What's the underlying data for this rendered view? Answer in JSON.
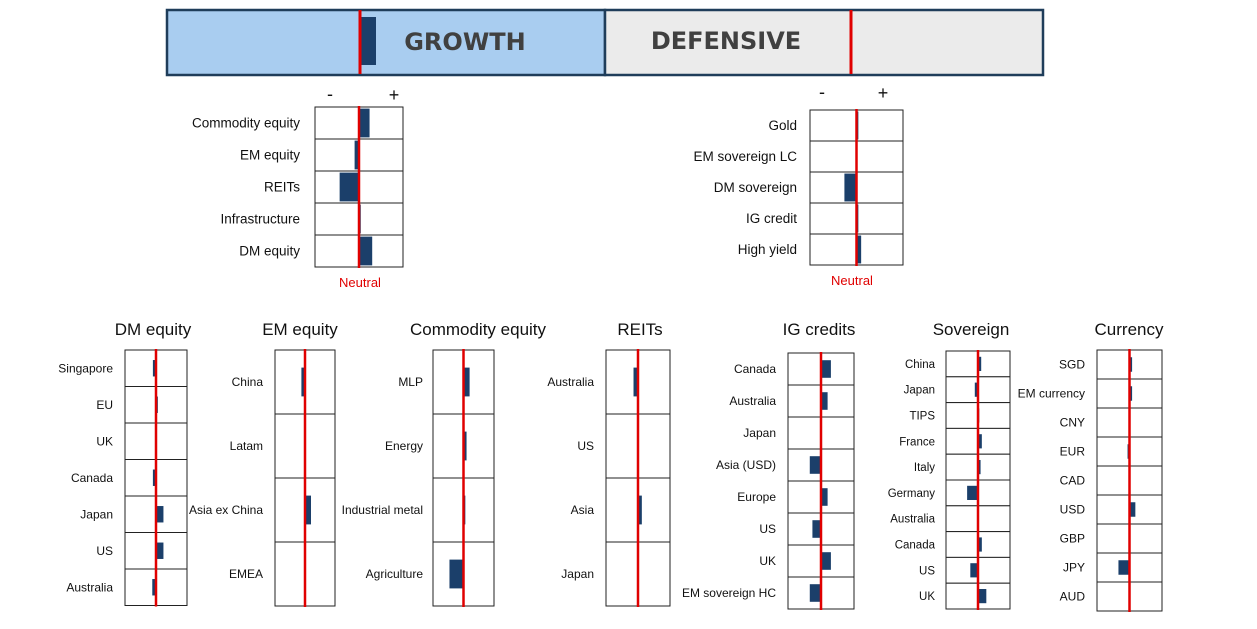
{
  "colors": {
    "growth_fill": "#a9cdf0",
    "defensive_fill": "#ebebeb",
    "banner_border": "#1f3d5a",
    "bar": "#1b3f6a",
    "neutral_line": "#e00000",
    "cell_border": "#222222"
  },
  "banner": {
    "growth_label": "GROWTH",
    "defensive_label": "DEFENSIVE",
    "growth_value": 0.8,
    "defensive_value": 0
  },
  "scale": {
    "minus": "-",
    "plus": "+",
    "neutral_label": "Neutral"
  },
  "chart_data": [
    {
      "type": "bar",
      "id": "growth",
      "categories": [
        "Commodity equity",
        "EM equity",
        "REITs",
        "Infrastructure",
        "DM equity"
      ],
      "values": [
        1.2,
        -0.5,
        -2.2,
        0.2,
        1.5
      ],
      "xlim": [
        -5,
        5
      ]
    },
    {
      "type": "bar",
      "id": "defensive",
      "categories": [
        "Gold",
        "EM sovereign LC",
        "DM sovereign",
        "IG credit",
        "High yield"
      ],
      "values": [
        0.2,
        0,
        -1.3,
        0.2,
        0.5
      ],
      "xlim": [
        -5,
        5
      ]
    },
    {
      "type": "bar",
      "id": "dm-equity",
      "title": "DM equity",
      "categories": [
        "Singapore",
        "EU",
        "UK",
        "Canada",
        "Japan",
        "US",
        "Australia"
      ],
      "values": [
        -0.5,
        0.3,
        0,
        -0.5,
        1.2,
        1.2,
        -0.6
      ],
      "xlim": [
        -5,
        5
      ]
    },
    {
      "type": "bar",
      "id": "em-equity",
      "title": "EM equity",
      "categories": [
        "China",
        "Latam",
        "Asia ex China",
        "EMEA"
      ],
      "values": [
        -0.6,
        0,
        1.0,
        0
      ],
      "xlim": [
        -5,
        5
      ]
    },
    {
      "type": "bar",
      "id": "commodity-equity",
      "title": "Commodity equity",
      "categories": [
        "MLP",
        "Energy",
        "Industrial metal",
        "Agriculture"
      ],
      "values": [
        1.0,
        0.5,
        0.3,
        -2.3
      ],
      "xlim": [
        -5,
        5
      ]
    },
    {
      "type": "bar",
      "id": "reits",
      "title": "REITs",
      "categories": [
        "Australia",
        "US",
        "Asia",
        "Japan"
      ],
      "values": [
        -0.7,
        0,
        0.6,
        0
      ],
      "xlim": [
        -5,
        5
      ]
    },
    {
      "type": "bar",
      "id": "ig-credits",
      "title": "IG credits",
      "categories": [
        "Canada",
        "Australia",
        "Japan",
        "Asia (USD)",
        "Europe",
        "US",
        "UK",
        "EM sovereign HC"
      ],
      "values": [
        1.5,
        1.0,
        0,
        -1.7,
        1.0,
        -1.3,
        1.5,
        -1.7
      ],
      "xlim": [
        -5,
        5
      ]
    },
    {
      "type": "bar",
      "id": "sovereign",
      "title": "Sovereign",
      "categories": [
        "China",
        "Japan",
        "TIPS",
        "France",
        "Italy",
        "Germany",
        "Australia",
        "Canada",
        "US",
        "UK"
      ],
      "values": [
        0.5,
        -0.5,
        0.2,
        0.6,
        0.4,
        -1.7,
        0,
        0.6,
        -1.2,
        1.3
      ],
      "xlim": [
        -5,
        5
      ]
    },
    {
      "type": "bar",
      "id": "currency",
      "title": "Currency",
      "categories": [
        "SGD",
        "EM currency",
        "CNY",
        "EUR",
        "CAD",
        "USD",
        "GBP",
        "JPY",
        "AUD"
      ],
      "values": [
        0.4,
        0.4,
        0,
        -0.3,
        0,
        0.9,
        0,
        -1.7,
        0
      ],
      "xlim": [
        -5,
        5
      ]
    }
  ]
}
